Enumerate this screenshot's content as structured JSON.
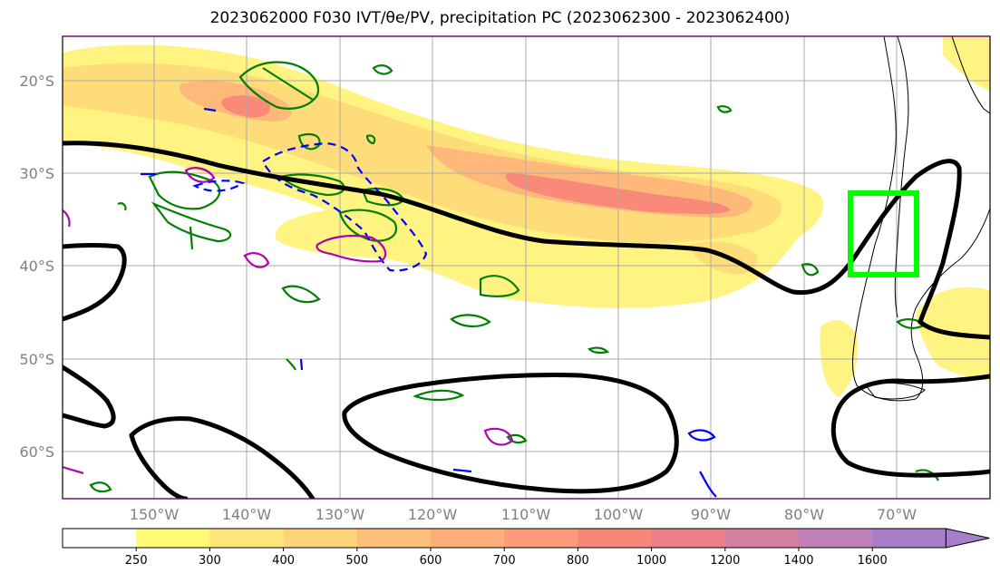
{
  "title": "2023062000 F030 IVT/θe/PV, precipitation PC (2023062300 - 2023062400)",
  "lat_labels": [
    "20°S",
    "30°S",
    "40°S",
    "50°S",
    "60°S"
  ],
  "lon_labels": [
    "150°W",
    "140°W",
    "130°W",
    "120°W",
    "110°W",
    "100°W",
    "90°W",
    "80°W",
    "70°W"
  ],
  "colorbar": {
    "ticks": [
      "250",
      "300",
      "400",
      "500",
      "600",
      "700",
      "800",
      "1000",
      "1200",
      "1400",
      "1600"
    ],
    "colors": [
      "#ffffff",
      "#fffa78",
      "#fee67a",
      "#fdd47a",
      "#fdc07a",
      "#fdae7a",
      "#fc9a7a",
      "#f58878",
      "#ea8088",
      "#d580a0",
      "#c080b8",
      "#a87ec8"
    ]
  },
  "colors": {
    "theta_contour": "#000000",
    "pv_positive": "#008000",
    "pv_negative": "#0000ff",
    "pv_strong": "#b000b0",
    "target_box": "#00ff00",
    "grid": "#aaaaaa",
    "frame": "#000000"
  }
}
